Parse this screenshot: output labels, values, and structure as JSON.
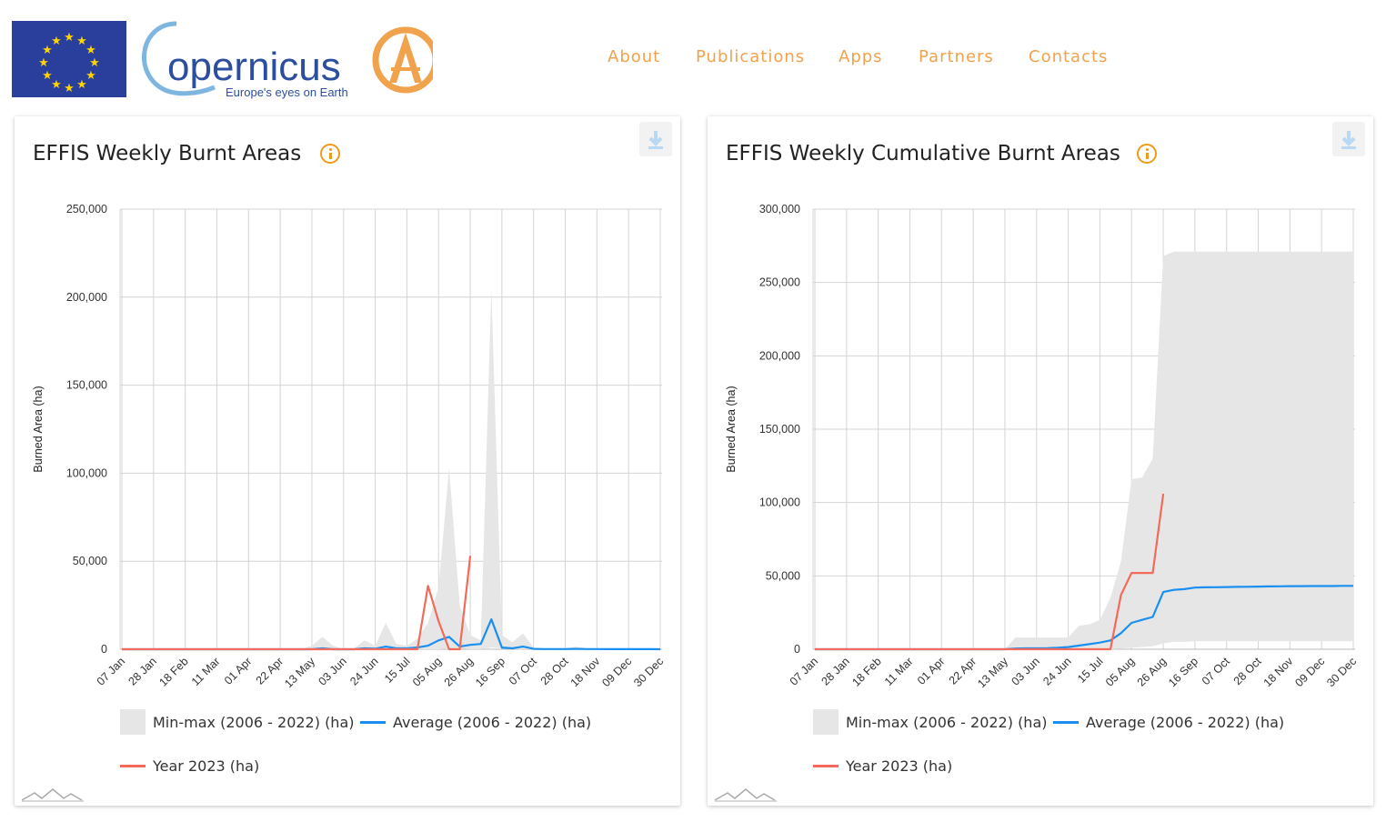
{
  "header": {
    "logo_text": "opernicus",
    "logo_sub": "Europe's eyes on Earth",
    "nav": [
      "About",
      "Publications",
      "Apps",
      "Partners",
      "Contacts"
    ]
  },
  "colors": {
    "nav": "#f0a24c",
    "average": "#1a8ff0",
    "year": "#f36a5a",
    "minmax": "#e6e6e6",
    "info": "#f09a1a"
  },
  "cards": [
    {
      "title": "EFFIS Weekly Burnt Areas"
    },
    {
      "title": "EFFIS Weekly Cumulative Burnt Areas"
    }
  ],
  "chart_data": [
    {
      "type": "area",
      "title": "EFFIS Weekly Burnt Areas",
      "ylabel": "Burned Area (ha)",
      "ylim": [
        0,
        250000
      ],
      "yticks": [
        0,
        50000,
        100000,
        150000,
        200000,
        250000
      ],
      "ytick_labels": [
        "0",
        "50,000",
        "100,000",
        "150,000",
        "200,000",
        "250,000"
      ],
      "xtick_labels": [
        "07 Jan",
        "28 Jan",
        "18 Feb",
        "11 Mar",
        "01 Apr",
        "22 Apr",
        "13 May",
        "03 Jun",
        "24 Jun",
        "15 Jul",
        "05 Aug",
        "26 Aug",
        "16 Sep",
        "07 Oct",
        "28 Oct",
        "18 Nov",
        "09 Dec",
        "30 Dec"
      ],
      "grid": true,
      "legend": "bottom",
      "weeks": 52,
      "series": [
        {
          "name": "Min-max (2006 - 2022) (ha)",
          "kind": "range",
          "max": [
            0,
            0,
            0,
            0,
            0,
            0,
            0,
            0,
            0,
            0,
            0,
            0,
            0,
            0,
            0,
            0,
            0,
            0,
            2000,
            7000,
            2000,
            0,
            500,
            5000,
            2000,
            15000,
            3000,
            2000,
            6000,
            15000,
            35000,
            103000,
            25000,
            8000,
            5000,
            205000,
            8000,
            4000,
            9000,
            1000,
            500,
            500,
            500,
            1500,
            500,
            500,
            300,
            300,
            200,
            200,
            200,
            0
          ],
          "min": [
            0,
            0,
            0,
            0,
            0,
            0,
            0,
            0,
            0,
            0,
            0,
            0,
            0,
            0,
            0,
            0,
            0,
            0,
            0,
            0,
            0,
            0,
            0,
            0,
            0,
            0,
            0,
            0,
            0,
            0,
            0,
            500,
            500,
            0,
            0,
            1000,
            500,
            0,
            0,
            0,
            0,
            0,
            0,
            0,
            0,
            0,
            0,
            0,
            0,
            0,
            0,
            0
          ]
        },
        {
          "name": "Average (2006 - 2022) (ha)",
          "kind": "line",
          "values": [
            0,
            0,
            0,
            0,
            0,
            0,
            0,
            0,
            0,
            0,
            0,
            0,
            0,
            0,
            0,
            0,
            0,
            0,
            0,
            500,
            0,
            0,
            0,
            500,
            300,
            1500,
            500,
            500,
            1000,
            2000,
            5000,
            7000,
            1500,
            2500,
            3000,
            17000,
            1000,
            500,
            1500,
            200,
            100,
            100,
            100,
            200,
            100,
            100,
            50,
            50,
            50,
            50,
            50,
            0
          ]
        },
        {
          "name": "Year 2023 (ha)",
          "kind": "line",
          "values": [
            0,
            0,
            0,
            0,
            0,
            0,
            0,
            0,
            0,
            0,
            0,
            0,
            0,
            0,
            0,
            0,
            0,
            0,
            0,
            0,
            0,
            0,
            0,
            0,
            0,
            0,
            0,
            0,
            0,
            36000,
            16000,
            0,
            0,
            53000
          ]
        }
      ]
    },
    {
      "type": "area",
      "title": "EFFIS Weekly Cumulative Burnt Areas",
      "ylabel": "Burned Area (ha)",
      "ylim": [
        0,
        300000
      ],
      "yticks": [
        0,
        50000,
        100000,
        150000,
        200000,
        250000,
        300000
      ],
      "ytick_labels": [
        "0",
        "50,000",
        "100,000",
        "150,000",
        "200,000",
        "250,000",
        "300,000"
      ],
      "xtick_labels": [
        "07 Jan",
        "28 Jan",
        "18 Feb",
        "11 Mar",
        "01 Apr",
        "22 Apr",
        "13 May",
        "03 Jun",
        "24 Jun",
        "15 Jul",
        "05 Aug",
        "26 Aug",
        "16 Sep",
        "07 Oct",
        "28 Oct",
        "18 Nov",
        "09 Dec",
        "30 Dec"
      ],
      "grid": true,
      "legend": "bottom",
      "weeks": 52,
      "series": [
        {
          "name": "Min-max (2006 - 2022) (ha)",
          "kind": "range",
          "max": [
            0,
            0,
            0,
            0,
            0,
            0,
            0,
            0,
            0,
            0,
            0,
            0,
            0,
            0,
            0,
            0,
            0,
            0,
            0,
            8000,
            8000,
            8000,
            8000,
            8000,
            8000,
            16000,
            17000,
            20000,
            35000,
            60000,
            116000,
            117000,
            130000,
            268000,
            271000,
            271000,
            271000,
            271000,
            271000,
            271000,
            271000,
            271000,
            271000,
            271000,
            271000,
            271000,
            271000,
            271000,
            271000,
            271000,
            271000,
            271000
          ],
          "min": [
            0,
            0,
            0,
            0,
            0,
            0,
            0,
            0,
            0,
            0,
            0,
            0,
            0,
            0,
            0,
            0,
            0,
            0,
            0,
            0,
            0,
            0,
            0,
            0,
            0,
            0,
            0,
            0,
            0,
            500,
            1000,
            1500,
            2000,
            4000,
            5000,
            5000,
            5500,
            5500,
            5500,
            5500,
            5500,
            5500,
            5500,
            5500,
            5500,
            5500,
            5500,
            5500,
            5500,
            5500,
            5500,
            5500
          ]
        },
        {
          "name": "Average (2006 - 2022) (ha)",
          "kind": "line",
          "values": [
            0,
            0,
            0,
            0,
            0,
            0,
            0,
            0,
            0,
            0,
            0,
            0,
            0,
            0,
            0,
            0,
            0,
            0,
            0,
            500,
            600,
            600,
            700,
            1000,
            1500,
            2500,
            3500,
            4500,
            6000,
            11000,
            18000,
            20000,
            22000,
            39000,
            40500,
            41000,
            42000,
            42200,
            42300,
            42400,
            42500,
            42600,
            42700,
            42800,
            42900,
            43000,
            43000,
            43100,
            43100,
            43100,
            43200,
            43200
          ]
        },
        {
          "name": "Year 2023 (ha)",
          "kind": "line",
          "values": [
            0,
            0,
            0,
            0,
            0,
            0,
            0,
            0,
            0,
            0,
            0,
            0,
            0,
            0,
            0,
            0,
            0,
            0,
            0,
            0,
            0,
            0,
            0,
            0,
            0,
            0,
            0,
            0,
            0,
            37000,
            52000,
            52000,
            52000,
            106000
          ]
        }
      ]
    }
  ]
}
